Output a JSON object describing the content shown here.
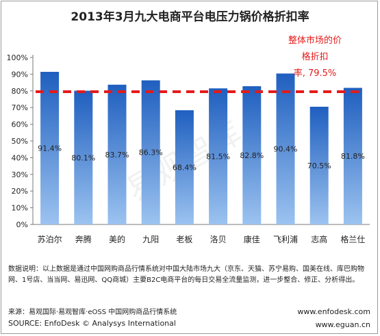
{
  "chart_data": {
    "type": "bar",
    "title": "2013年3月九大电商平台电压力锅价格折扣率",
    "categories": [
      "苏泊尔",
      "奔腾",
      "美的",
      "九阳",
      "老板",
      "洛贝",
      "康佳",
      "飞利浦",
      "志高",
      "格兰仕"
    ],
    "values": [
      91.4,
      80.1,
      83.7,
      86.3,
      68.4,
      81.5,
      82.8,
      90.4,
      70.5,
      81.8
    ],
    "value_labels": [
      "91.4%",
      "80.1%",
      "83.7%",
      "86.3%",
      "68.4%",
      "81.5%",
      "82.8%",
      "90.4%",
      "70.5%",
      "81.8%"
    ],
    "yticks": [
      "0%",
      "10%",
      "20%",
      "30%",
      "40%",
      "50%",
      "60%",
      "70%",
      "80%",
      "90%",
      "100%"
    ],
    "ylim": [
      0,
      100
    ],
    "reference_line": {
      "value": 79.5,
      "color": "#e41a1a",
      "style": "dashed"
    },
    "annotation": [
      "整体市场的价",
      "格折扣",
      "率, 79.5%"
    ],
    "bar_color": "#1f5fbf",
    "bar_color_light": "#9cc3f0",
    "grid": false,
    "legend": "none"
  },
  "description": "数据说明：以上数据是通过中国网购商品行情系统对中国大陆市场九大（京东、天猫、苏宁易购、国美在线、库巴购物网、1号店、当当网、易迅网、QQ商城）主要B2C电商平台的每日交易全流量监测，进一步整合、修正、分析得出。",
  "source_cn": "来源：易观国际·易观智库·eOSS 中国网购商品行情系统",
  "source_en": "SOURCE: EnfoDesk © Analysys International",
  "url_enfodesk": "www.enfodesk.com",
  "url_eguan": "www.eguan.cn",
  "watermark": "易观智库"
}
